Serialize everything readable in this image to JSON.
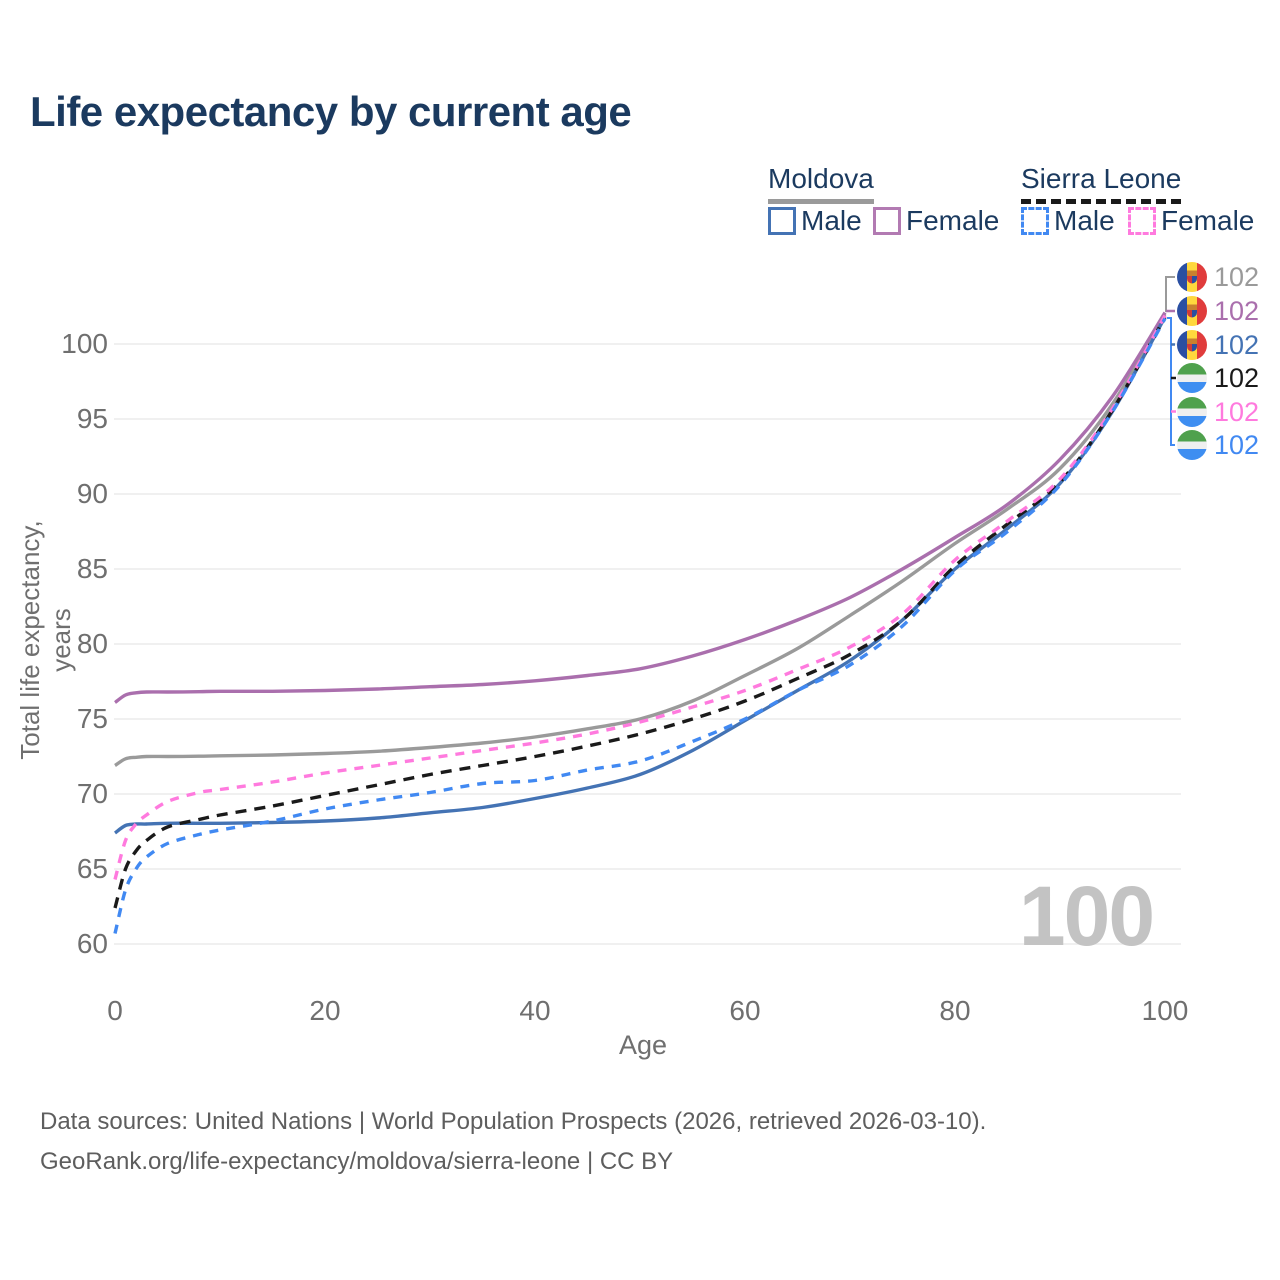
{
  "title": "Life expectancy by current age",
  "watermark": "100",
  "legend": {
    "groups": [
      {
        "label": "Moldova",
        "line_style": "solid",
        "line_color": "#9a9a9a",
        "items": [
          {
            "label": "Male",
            "color": "#4473b4",
            "dash": false
          },
          {
            "label": "Female",
            "color": "#b27ab2",
            "dash": false
          }
        ]
      },
      {
        "label": "Sierra Leone",
        "line_style": "dashed",
        "line_color": "#1a1a1a",
        "items": [
          {
            "label": "Male",
            "color": "#4189f2",
            "dash": true
          },
          {
            "label": "Female",
            "color": "#ff7ade",
            "dash": true
          }
        ]
      }
    ]
  },
  "end_labels": [
    {
      "value": "102",
      "flag": "moldova",
      "color": "#9a9a9a"
    },
    {
      "value": "102",
      "flag": "moldova",
      "color": "#aa6fad"
    },
    {
      "value": "102",
      "flag": "moldova",
      "color": "#4473b4"
    },
    {
      "value": "102",
      "flag": "sierra-leone",
      "color": "#1a1a1a"
    },
    {
      "value": "102",
      "flag": "sierra-leone",
      "color": "#ff7ade"
    },
    {
      "value": "102",
      "flag": "sierra-leone",
      "color": "#4189f2"
    }
  ],
  "footer": {
    "line1": "Data sources: United Nations | World Population Prospects (2026, retrieved 2026-03-10).",
    "line2": "GeoRank.org/life-expectancy/moldova/sierra-leone | CC BY"
  },
  "chart_data": {
    "type": "line",
    "title": "Life expectancy by current age",
    "xlabel": "Age",
    "ylabel": "Total life expectancy, years",
    "xlim": [
      0,
      100
    ],
    "ylim": [
      60,
      102
    ],
    "xticks": [
      0,
      20,
      40,
      60,
      80,
      100
    ],
    "yticks": [
      60,
      65,
      70,
      75,
      80,
      85,
      90,
      95,
      100
    ],
    "grid": "horizontal-only",
    "legend_position": "top-right",
    "x": [
      0,
      1,
      2,
      3,
      5,
      8,
      10,
      15,
      20,
      25,
      30,
      35,
      40,
      45,
      50,
      55,
      60,
      65,
      70,
      75,
      80,
      85,
      90,
      95,
      100
    ],
    "series": [
      {
        "name": "Moldova",
        "country": "Moldova",
        "sex": "both",
        "color": "#9a9a9a",
        "dash": false,
        "end_value": 102,
        "values": [
          71.9,
          72.35,
          72.45,
          72.5,
          72.5,
          72.52,
          72.55,
          72.6,
          72.7,
          72.85,
          73.1,
          73.4,
          73.8,
          74.35,
          75.0,
          76.2,
          77.9,
          79.7,
          81.9,
          84.2,
          86.7,
          89.0,
          91.7,
          96.0,
          102.0
        ]
      },
      {
        "name": "Moldova Female",
        "country": "Moldova",
        "sex": "female",
        "color": "#aa6fad",
        "dash": false,
        "end_value": 102,
        "values": [
          76.1,
          76.6,
          76.75,
          76.8,
          76.8,
          76.82,
          76.85,
          76.85,
          76.9,
          77.0,
          77.15,
          77.3,
          77.55,
          77.9,
          78.35,
          79.2,
          80.3,
          81.6,
          83.1,
          85.0,
          87.1,
          89.3,
          92.3,
          96.5,
          102.1
        ]
      },
      {
        "name": "Moldova Male",
        "country": "Moldova",
        "sex": "male",
        "color": "#4473b4",
        "dash": false,
        "end_value": 102,
        "values": [
          67.4,
          67.9,
          68.0,
          68.0,
          68.05,
          68.05,
          68.05,
          68.1,
          68.2,
          68.4,
          68.75,
          69.1,
          69.7,
          70.4,
          71.3,
          72.9,
          74.9,
          76.9,
          78.9,
          81.6,
          85.0,
          87.7,
          90.7,
          95.5,
          101.8
        ]
      },
      {
        "name": "Sierra Leone",
        "country": "Sierra Leone",
        "sex": "both",
        "color": "#1a1a1a",
        "dash": true,
        "end_value": 102,
        "values": [
          62.4,
          65.0,
          66.2,
          66.9,
          67.8,
          68.3,
          68.6,
          69.2,
          69.9,
          70.6,
          71.3,
          71.9,
          72.5,
          73.2,
          74.0,
          75.0,
          76.2,
          77.7,
          79.3,
          81.6,
          85.2,
          88.0,
          90.8,
          95.6,
          101.8
        ]
      },
      {
        "name": "Sierra Leone Female",
        "country": "Sierra Leone",
        "sex": "female",
        "color": "#ff7ade",
        "dash": true,
        "end_value": 102,
        "values": [
          64.3,
          66.9,
          68.0,
          68.6,
          69.5,
          70.1,
          70.3,
          70.8,
          71.4,
          71.9,
          72.4,
          72.9,
          73.4,
          74.0,
          74.8,
          75.8,
          76.9,
          78.3,
          79.8,
          82.0,
          85.6,
          88.2,
          91.0,
          95.7,
          101.9
        ]
      },
      {
        "name": "Sierra Leone Male",
        "country": "Sierra Leone",
        "sex": "male",
        "color": "#4189f2",
        "dash": true,
        "end_value": 102,
        "values": [
          60.7,
          63.6,
          65.0,
          65.8,
          66.7,
          67.3,
          67.6,
          68.2,
          69.0,
          69.6,
          70.1,
          70.7,
          70.9,
          71.6,
          72.2,
          73.5,
          75.0,
          76.9,
          78.6,
          81.2,
          84.9,
          87.5,
          90.6,
          95.5,
          101.7
        ]
      }
    ]
  }
}
